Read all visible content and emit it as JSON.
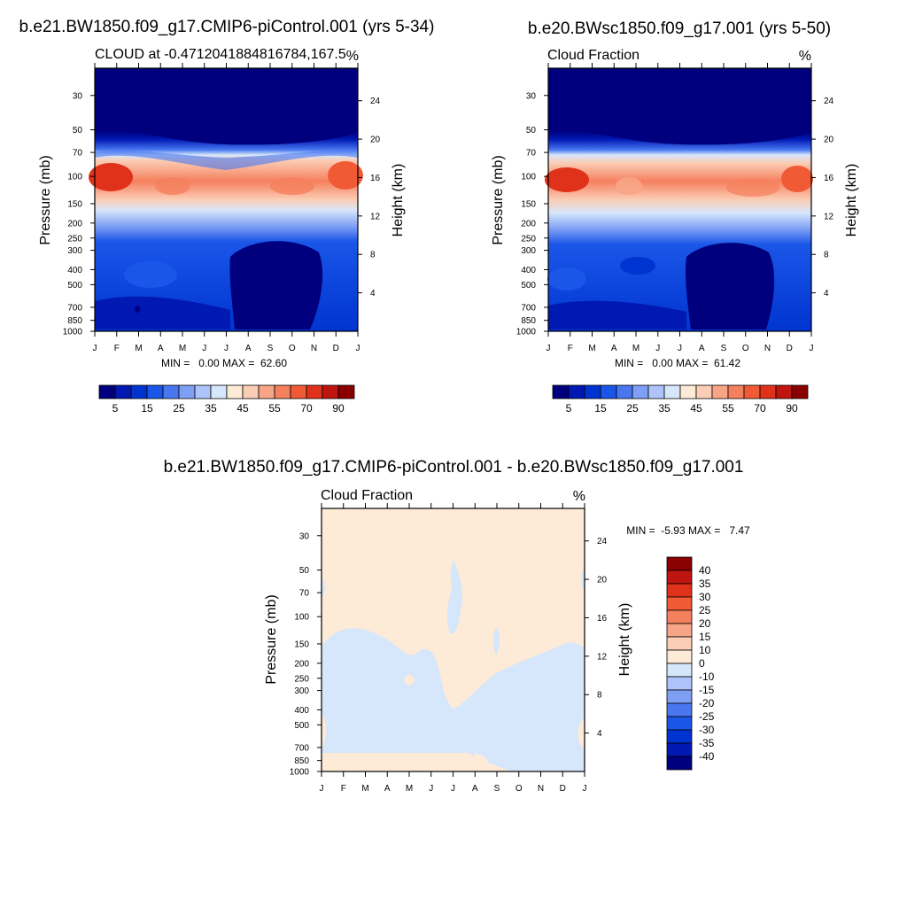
{
  "chart_data": [
    {
      "type": "heatmap",
      "title": "b.e21.BW1850.f09_g17.CMIP6-piControl.001 (yrs 5-34)",
      "left_label": "CLOUD at -0.4712041884816784,167.5",
      "right_label": "%",
      "ylabel": "Pressure (mb)",
      "ylabel_right": "Height (km)",
      "stats": "MIN =   0.00 MAX =  62.60",
      "min": 0.0,
      "max": 62.6,
      "y_scale": "log",
      "ylim": [
        1000,
        20
      ],
      "x": [
        "J",
        "F",
        "M",
        "A",
        "M",
        "J",
        "J",
        "A",
        "S",
        "O",
        "N",
        "D",
        "J"
      ],
      "pressure_ticks": [
        30,
        50,
        70,
        100,
        150,
        200,
        250,
        300,
        400,
        500,
        700,
        850,
        1000
      ],
      "height_ticks": [
        24,
        20,
        16,
        12,
        8,
        4
      ],
      "colorbar": {
        "levels": [
          0,
          5,
          10,
          15,
          20,
          25,
          30,
          35,
          40,
          45,
          50,
          55,
          60,
          70,
          80,
          90,
          100
        ],
        "labels": [
          "5",
          "15",
          "25",
          "35",
          "45",
          "55",
          "70",
          "90"
        ],
        "colors": [
          "#00007f",
          "#0019b3",
          "#0034d0",
          "#1a56e8",
          "#4877f0",
          "#7f9ff5",
          "#adc3f9",
          "#d6e6fb",
          "#fdebd7",
          "#fbcdb5",
          "#f8a587",
          "#f5805e",
          "#f05a35",
          "#e0321b",
          "#c01410",
          "#8b0000"
        ]
      },
      "grid": false
    },
    {
      "type": "heatmap",
      "title": "b.e20.BWsc1850.f09_g17.001 (yrs 5-50)",
      "left_label": "Cloud Fraction",
      "right_label": "%",
      "ylabel": "Pressure (mb)",
      "ylabel_right": "Height (km)",
      "stats": "MIN =   0.00 MAX =  61.42",
      "min": 0.0,
      "max": 61.42,
      "y_scale": "log",
      "ylim": [
        1000,
        20
      ],
      "x": [
        "J",
        "F",
        "M",
        "A",
        "M",
        "J",
        "J",
        "A",
        "S",
        "O",
        "N",
        "D",
        "J"
      ],
      "pressure_ticks": [
        30,
        50,
        70,
        100,
        150,
        200,
        250,
        300,
        400,
        500,
        700,
        850,
        1000
      ],
      "height_ticks": [
        24,
        20,
        16,
        12,
        8,
        4
      ],
      "colorbar": {
        "levels": [
          0,
          5,
          10,
          15,
          20,
          25,
          30,
          35,
          40,
          45,
          50,
          55,
          60,
          70,
          80,
          90,
          100
        ],
        "labels": [
          "5",
          "15",
          "25",
          "35",
          "45",
          "55",
          "70",
          "90"
        ],
        "colors": [
          "#00007f",
          "#0019b3",
          "#0034d0",
          "#1a56e8",
          "#4877f0",
          "#7f9ff5",
          "#adc3f9",
          "#d6e6fb",
          "#fdebd7",
          "#fbcdb5",
          "#f8a587",
          "#f5805e",
          "#f05a35",
          "#e0321b",
          "#c01410",
          "#8b0000"
        ]
      },
      "grid": false
    },
    {
      "type": "heatmap",
      "title": "b.e21.BW1850.f09_g17.CMIP6-piControl.001 - b.e20.BWsc1850.f09_g17.001",
      "left_label": "Cloud Fraction",
      "right_label": "%",
      "ylabel": "Pressure (mb)",
      "ylabel_right": "Height (km)",
      "stats": "MIN =  -5.93 MAX =   7.47",
      "min": -5.93,
      "max": 7.47,
      "y_scale": "log",
      "ylim": [
        1000,
        20
      ],
      "x": [
        "J",
        "F",
        "M",
        "A",
        "M",
        "J",
        "J",
        "A",
        "S",
        "O",
        "N",
        "D",
        "J"
      ],
      "pressure_ticks": [
        30,
        50,
        70,
        100,
        150,
        200,
        250,
        300,
        400,
        500,
        700,
        850,
        1000
      ],
      "height_ticks": [
        24,
        20,
        16,
        12,
        8,
        4
      ],
      "colorbar": {
        "labels": [
          "40",
          "35",
          "30",
          "25",
          "20",
          "15",
          "10",
          "0",
          "-10",
          "-15",
          "-20",
          "-25",
          "-30",
          "-35",
          "-40"
        ],
        "colors": [
          "#8b0000",
          "#c01410",
          "#e0321b",
          "#f05a35",
          "#f5805e",
          "#f8a587",
          "#fbcdb5",
          "#fdebd7",
          "#d6e6fb",
          "#adc3f9",
          "#7f9ff5",
          "#4877f0",
          "#1a56e8",
          "#0034d0",
          "#0019b3",
          "#00007f"
        ]
      },
      "grid": false
    }
  ]
}
